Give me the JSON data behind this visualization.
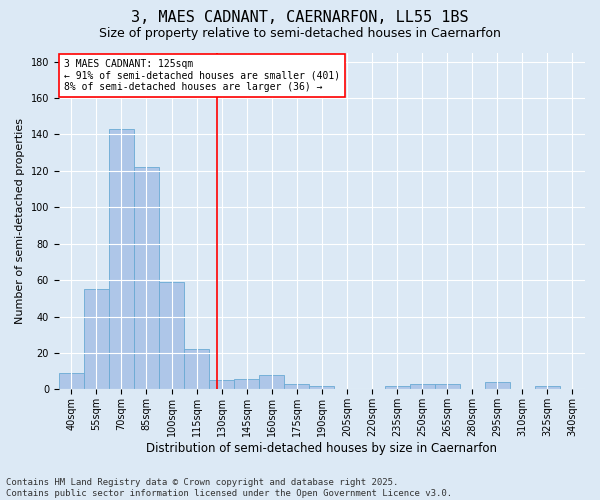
{
  "title_line1": "3, MAES CADNANT, CAERNARFON, LL55 1BS",
  "title_line2": "Size of property relative to semi-detached houses in Caernarfon",
  "xlabel": "Distribution of semi-detached houses by size in Caernarfon",
  "ylabel": "Number of semi-detached properties",
  "categories": [
    "40sqm",
    "55sqm",
    "70sqm",
    "85sqm",
    "100sqm",
    "115sqm",
    "130sqm",
    "145sqm",
    "160sqm",
    "175sqm",
    "190sqm",
    "205sqm",
    "220sqm",
    "235sqm",
    "250sqm",
    "265sqm",
    "280sqm",
    "295sqm",
    "310sqm",
    "325sqm",
    "340sqm"
  ],
  "values": [
    9,
    55,
    143,
    122,
    59,
    22,
    5,
    6,
    8,
    3,
    2,
    0,
    0,
    2,
    3,
    3,
    0,
    4,
    0,
    2,
    0
  ],
  "bar_color": "#aec6e8",
  "bar_edge_color": "#6aaad4",
  "vline_color": "red",
  "annotation_text": "3 MAES CADNANT: 125sqm\n← 91% of semi-detached houses are smaller (401)\n8% of semi-detached houses are larger (36) →",
  "annotation_box_color": "white",
  "annotation_box_edge": "red",
  "ylim": [
    0,
    185
  ],
  "yticks": [
    0,
    20,
    40,
    60,
    80,
    100,
    120,
    140,
    160,
    180
  ],
  "background_color": "#dce9f5",
  "plot_bg_color": "#dce9f5",
  "footer_line1": "Contains HM Land Registry data © Crown copyright and database right 2025.",
  "footer_line2": "Contains public sector information licensed under the Open Government Licence v3.0.",
  "title_fontsize": 11,
  "subtitle_fontsize": 9,
  "xlabel_fontsize": 8.5,
  "ylabel_fontsize": 8,
  "tick_fontsize": 7,
  "annotation_fontsize": 7,
  "footer_fontsize": 6.5
}
